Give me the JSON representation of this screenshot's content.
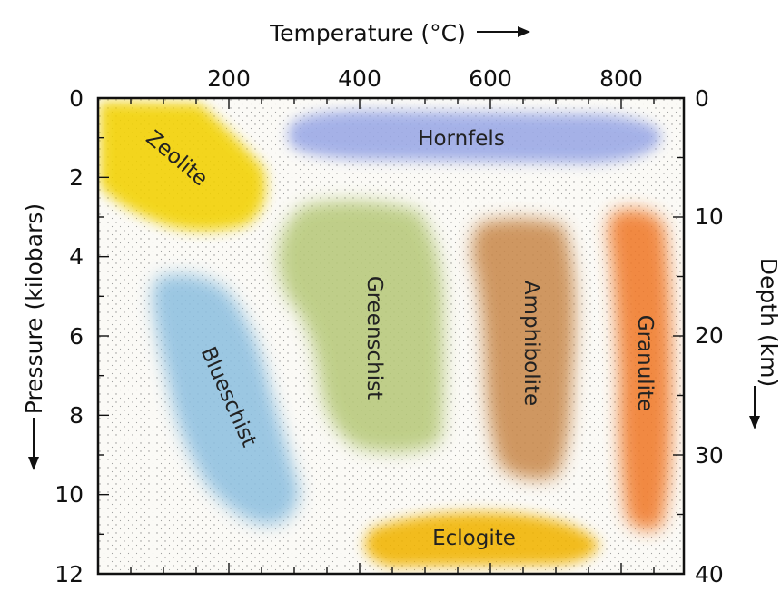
{
  "diagram": {
    "top_axis_label": "Temperature (°C)",
    "left_axis_label": "Pressure (kilobars)",
    "right_axis_label": "Depth (km)",
    "temperature_ticks": [
      "200",
      "400",
      "600",
      "800"
    ],
    "pressure_ticks": [
      "0",
      "2",
      "4",
      "6",
      "8",
      "10",
      "12"
    ],
    "depth_ticks": [
      "0",
      "10",
      "20",
      "30",
      "40"
    ]
  },
  "colors": {
    "zeolite": "#f2d100",
    "hornfels": "#9aa8e6",
    "greenschist": "#b7c97a",
    "amphibolite": "#c98a4e",
    "granulite": "#f07a2a",
    "blueschist": "#8ec0e0",
    "eclogite": "#f1b400"
  },
  "facies": [
    {
      "id": "zeolite",
      "label": "Zeolite"
    },
    {
      "id": "hornfels",
      "label": "Hornfels"
    },
    {
      "id": "greenschist",
      "label": "Greenschist"
    },
    {
      "id": "amphibolite",
      "label": "Amphibolite"
    },
    {
      "id": "granulite",
      "label": "Granulite"
    },
    {
      "id": "blueschist",
      "label": "Blueschist"
    },
    {
      "id": "eclogite",
      "label": "Eclogite"
    }
  ]
}
